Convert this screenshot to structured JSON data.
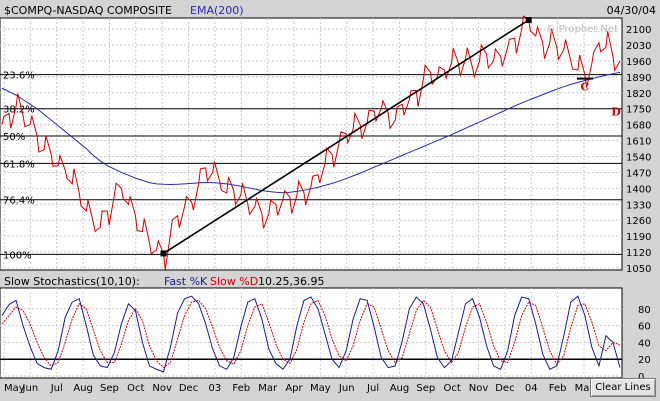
{
  "header": {
    "title": "$COMPQ-NASDAQ COMPOSITE",
    "indicator": "EMA(200)",
    "date": "04/30/04",
    "watermark": "© Prophet.Net"
  },
  "lower_panel": {
    "title": "Slow Stochastics(10,10):",
    "k_label": "Fast %K",
    "d_label": "Slow %D",
    "values": "10.25,36.95"
  },
  "buttons": {
    "clear_lines": "Clear Lines"
  },
  "colors": {
    "price": "#cc0000",
    "ema": "#2a2ab0",
    "trendline": "#000000",
    "fib": "#000000",
    "k_line": "#1a1a90",
    "d_line": "#cc0000",
    "frame_bg": "#d4d4d4",
    "plot_bg": "#ffffff"
  },
  "chart_data": [
    {
      "type": "line",
      "title": "$COMPQ-NASDAQ COMPOSITE",
      "grid": true,
      "ylim": [
        1050,
        2140
      ],
      "y_ticks": [
        2100,
        2030,
        1960,
        1890,
        1820,
        1750,
        1680,
        1610,
        1540,
        1470,
        1400,
        1330,
        1260,
        1190,
        1120,
        1050
      ],
      "x_ticks": [
        "May",
        "Jun",
        "Jul",
        "Aug",
        "Sep",
        "Oct",
        "Nov",
        "Dec",
        "03",
        "Feb",
        "Mar",
        "Apr",
        "May",
        "Jun",
        "Jul",
        "Aug",
        "Sep",
        "Oct",
        "Nov",
        "Dec",
        "04",
        "Feb",
        "Mar"
      ],
      "series": [
        {
          "name": "$COMPQ",
          "values": [
            1680,
            1730,
            1760,
            1720,
            1680,
            1630,
            1570,
            1550,
            1500,
            1480,
            1420,
            1380,
            1300,
            1250,
            1230,
            1300,
            1370,
            1400,
            1330,
            1280,
            1210,
            1160,
            1130,
            1114,
            1200,
            1280,
            1320,
            1340,
            1420,
            1490,
            1470,
            1430,
            1380,
            1390,
            1370,
            1330,
            1320,
            1290,
            1290,
            1330,
            1350,
            1360,
            1370,
            1380,
            1410,
            1460,
            1510,
            1550,
            1600,
            1640,
            1660,
            1680,
            1690,
            1740,
            1750,
            1730,
            1700,
            1770,
            1790,
            1830,
            1880,
            1910,
            1890,
            1920,
            1950,
            1950,
            1970,
            1930,
            1960,
            1990,
            1960,
            1980,
            2020,
            2060,
            2100,
            2140,
            2070,
            2040,
            2040,
            2020,
            2010,
            1960,
            1920,
            1900,
            1950,
            2040,
            2020,
            1980,
            1960
          ]
        },
        {
          "name": "EMA(200)",
          "values": [
            1840,
            1825,
            1810,
            1790,
            1770,
            1750,
            1725,
            1700,
            1675,
            1650,
            1625,
            1600,
            1575,
            1545,
            1520,
            1500,
            1485,
            1470,
            1458,
            1445,
            1435,
            1425,
            1420,
            1418,
            1417,
            1418,
            1420,
            1422,
            1424,
            1426,
            1425,
            1423,
            1420,
            1415,
            1410,
            1403,
            1397,
            1390,
            1386,
            1383,
            1381,
            1383,
            1387,
            1392,
            1398,
            1405,
            1413,
            1422,
            1432,
            1443,
            1455,
            1467,
            1480,
            1493,
            1506,
            1519,
            1532,
            1545,
            1558,
            1571,
            1584,
            1597,
            1610,
            1623,
            1636,
            1650,
            1664,
            1678,
            1692,
            1706,
            1720,
            1734,
            1748,
            1762,
            1775,
            1788,
            1800,
            1812,
            1824,
            1836,
            1847,
            1857,
            1866,
            1874,
            1882,
            1890,
            1897,
            1904,
            1910
          ]
        }
      ],
      "trendline": {
        "from": [
          1114,
          "Oct 2002"
        ],
        "to": [
          2140,
          "Jan 2004"
        ]
      },
      "fib_levels": [
        {
          "label": "23.6%",
          "value": 1900
        },
        {
          "label": "38.2%",
          "value": 1750
        },
        {
          "label": "50%",
          "value": 1630
        },
        {
          "label": "61.8%",
          "value": 1510
        },
        {
          "label": "76.4%",
          "value": 1350
        },
        {
          "label": "100%",
          "value": 1110
        }
      ],
      "annotations": [
        {
          "text": "C"
        },
        {
          "text": "D"
        }
      ]
    },
    {
      "type": "line",
      "title": "Slow Stochastics(10,10)",
      "grid": true,
      "ylim": [
        0,
        100
      ],
      "y_ticks": [
        80,
        60,
        40,
        20,
        0
      ],
      "reference_line": 20,
      "series": [
        {
          "name": "Fast %K",
          "values": [
            72,
            85,
            90,
            60,
            35,
            15,
            10,
            8,
            30,
            70,
            88,
            92,
            60,
            25,
            12,
            10,
            28,
            62,
            86,
            78,
            40,
            12,
            8,
            5,
            35,
            75,
            92,
            95,
            86,
            62,
            32,
            12,
            8,
            22,
            58,
            88,
            92,
            68,
            32,
            15,
            8,
            20,
            60,
            90,
            94,
            80,
            50,
            20,
            10,
            30,
            68,
            92,
            90,
            58,
            22,
            10,
            12,
            42,
            80,
            94,
            86,
            56,
            22,
            10,
            18,
            52,
            86,
            92,
            70,
            36,
            12,
            8,
            30,
            72,
            94,
            92,
            62,
            26,
            8,
            12,
            48,
            88,
            95,
            72,
            34,
            12,
            48,
            40,
            10
          ]
        },
        {
          "name": "Slow %D",
          "values": [
            62,
            72,
            82,
            78,
            62,
            40,
            22,
            12,
            16,
            40,
            68,
            86,
            80,
            55,
            30,
            16,
            16,
            38,
            66,
            80,
            66,
            36,
            18,
            10,
            16,
            44,
            72,
            88,
            90,
            80,
            58,
            34,
            18,
            14,
            30,
            60,
            82,
            86,
            64,
            38,
            20,
            15,
            32,
            64,
            86,
            90,
            72,
            44,
            24,
            18,
            36,
            66,
            86,
            82,
            56,
            30,
            16,
            22,
            50,
            78,
            90,
            82,
            56,
            30,
            16,
            28,
            58,
            82,
            86,
            64,
            36,
            18,
            16,
            40,
            72,
            88,
            84,
            58,
            30,
            14,
            24,
            58,
            84,
            86,
            64,
            36,
            30,
            40,
            37
          ]
        }
      ]
    }
  ]
}
